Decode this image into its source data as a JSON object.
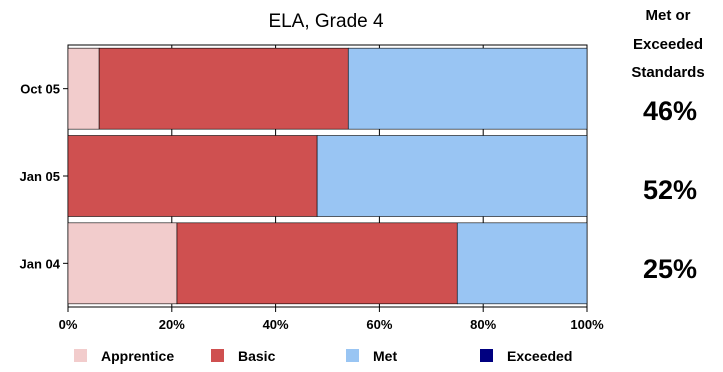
{
  "chart_data": {
    "type": "bar",
    "orientation": "horizontal",
    "stacked": true,
    "title": "ELA, Grade 4",
    "categories": [
      "Oct 05",
      "Jan 05",
      "Jan 04"
    ],
    "series": [
      {
        "name": "Apprentice",
        "color": "#f2cccc",
        "values": [
          6,
          0,
          21
        ]
      },
      {
        "name": "Basic",
        "color": "#cf5050",
        "values": [
          48,
          48,
          54
        ]
      },
      {
        "name": "Met",
        "color": "#99c5f3",
        "values": [
          46,
          52,
          25
        ]
      },
      {
        "name": "Exceeded",
        "color": "#000080",
        "values": [
          0,
          0,
          0
        ]
      }
    ],
    "xlim": [
      0,
      100
    ],
    "xticks": [
      "0%",
      "20%",
      "40%",
      "60%",
      "80%",
      "100%"
    ],
    "grid": true,
    "legend_position": "bottom"
  },
  "side_panel": {
    "heading_lines": [
      "Met or",
      "Exceeded",
      "Standards"
    ],
    "values": [
      "46%",
      "52%",
      "25%"
    ]
  }
}
